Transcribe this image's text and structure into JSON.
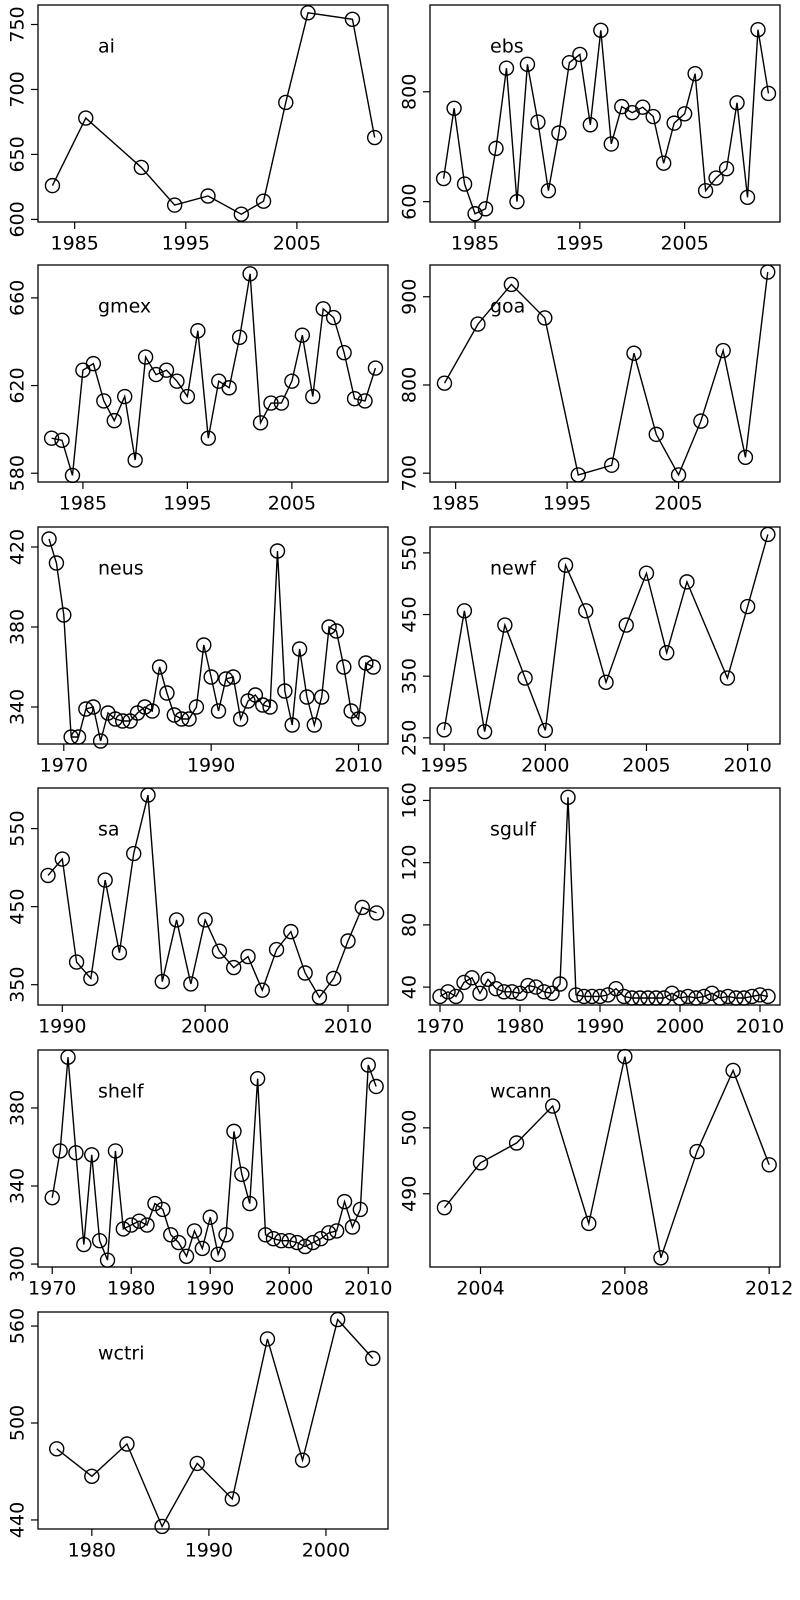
{
  "chart_data": [
    {
      "type": "line",
      "title": "ai",
      "color": "#000000",
      "marker": "circle",
      "x": [
        1983,
        1986,
        1991,
        1994,
        1997,
        2000,
        2002,
        2004,
        2006,
        2010,
        2012
      ],
      "values": [
        626,
        678,
        640,
        611,
        618,
        604,
        614,
        690,
        759,
        754,
        663
      ],
      "xlim": [
        1981.7,
        2013.2
      ],
      "ylim": [
        598,
        765
      ],
      "xticks": [
        1985,
        1995,
        2005
      ],
      "yticks": [
        600,
        650,
        700,
        750
      ]
    },
    {
      "type": "line",
      "title": "ebs",
      "color": "#000000",
      "marker": "circle",
      "x": [
        1982,
        1983,
        1984,
        1985,
        1986,
        1987,
        1988,
        1989,
        1990,
        1991,
        1992,
        1993,
        1994,
        1995,
        1996,
        1997,
        1998,
        1999,
        2000,
        2001,
        2002,
        2003,
        2004,
        2005,
        2006,
        2007,
        2008,
        2009,
        2010,
        2011,
        2012,
        2013
      ],
      "values": [
        642,
        770,
        632,
        578,
        587,
        697,
        843,
        600,
        850,
        745,
        620,
        725,
        853,
        868,
        740,
        912,
        705,
        773,
        762,
        772,
        755,
        670,
        743,
        760,
        833,
        620,
        643,
        660,
        780,
        608,
        913,
        797
      ],
      "xlim": [
        1980.7,
        2014.1
      ],
      "ylim": [
        563,
        958
      ],
      "xticks": [
        1985,
        1995,
        2005
      ],
      "yticks": [
        600,
        800
      ]
    },
    {
      "type": "line",
      "title": "gmex",
      "color": "#000000",
      "marker": "circle",
      "x": [
        1982,
        1983,
        1984,
        1985,
        1986,
        1987,
        1988,
        1989,
        1990,
        1991,
        1992,
        1993,
        1994,
        1995,
        1996,
        1997,
        1998,
        1999,
        2000,
        2001,
        2002,
        2003,
        2004,
        2005,
        2006,
        2007,
        2008,
        2009,
        2010,
        2011,
        2012,
        2013
      ],
      "values": [
        596,
        595,
        579,
        627,
        630,
        613,
        604,
        615,
        586,
        633,
        625,
        627,
        622,
        615,
        645,
        596,
        622,
        619,
        642,
        671,
        603,
        612,
        612,
        622,
        643,
        615,
        655,
        651,
        635,
        614,
        613,
        628
      ],
      "xlim": [
        1980.7,
        2014.2
      ],
      "ylim": [
        576,
        675
      ],
      "xticks": [
        1985,
        1995,
        2005
      ],
      "yticks": [
        580,
        620,
        660
      ]
    },
    {
      "type": "line",
      "title": "goa",
      "color": "#000000",
      "marker": "circle",
      "x": [
        1984,
        1987,
        1990,
        1993,
        1996,
        1999,
        2001,
        2003,
        2005,
        2007,
        2009,
        2011,
        2013
      ],
      "values": [
        802,
        869,
        914,
        876,
        698,
        709,
        836,
        744,
        698,
        759,
        839,
        718,
        928
      ],
      "xlim": [
        1982.7,
        2014.1
      ],
      "ylim": [
        690,
        936
      ],
      "xticks": [
        1985,
        1995,
        2005
      ],
      "yticks": [
        700,
        800,
        900
      ]
    },
    {
      "type": "line",
      "title": "neus",
      "color": "#000000",
      "marker": "circle",
      "x": [
        1968,
        1969,
        1970,
        1971,
        1972,
        1973,
        1974,
        1975,
        1976,
        1977,
        1978,
        1979,
        1980,
        1981,
        1982,
        1983,
        1984,
        1985,
        1986,
        1987,
        1988,
        1989,
        1990,
        1991,
        1992,
        1993,
        1994,
        1995,
        1996,
        1997,
        1998,
        1999,
        2000,
        2001,
        2002,
        2003,
        2004,
        2005,
        2006,
        2007,
        2008,
        2009,
        2010,
        2011,
        2012
      ],
      "values": [
        424,
        412,
        386,
        325,
        325,
        339,
        340,
        323,
        337,
        334,
        333,
        333,
        337,
        340,
        338,
        360,
        347,
        336,
        334,
        334,
        340,
        371,
        355,
        338,
        354,
        355,
        334,
        343,
        346,
        341,
        340,
        418,
        348,
        331,
        369,
        345,
        331,
        345,
        380,
        378,
        360,
        338,
        334,
        362,
        360
      ],
      "xlim": [
        1966.5,
        2014
      ],
      "ylim": [
        321.5,
        430
      ],
      "xticks": [
        1970,
        1990,
        2010
      ],
      "yticks": [
        340,
        380,
        420
      ]
    },
    {
      "type": "line",
      "title": "newf",
      "color": "#000000",
      "marker": "circle",
      "x": [
        1995,
        1996,
        1997,
        1998,
        1999,
        2000,
        2001,
        2002,
        2003,
        2004,
        2005,
        2006,
        2007,
        2009,
        2010,
        2011
      ],
      "values": [
        263,
        456,
        260,
        433,
        347,
        262,
        530,
        456,
        340,
        433,
        517,
        388,
        503,
        347,
        463,
        580
      ],
      "xlim": [
        1994.3,
        2011.6
      ],
      "ylim": [
        240,
        592
      ],
      "xticks": [
        1995,
        2000,
        2005,
        2010
      ],
      "yticks": [
        250,
        350,
        450,
        550
      ]
    },
    {
      "type": "line",
      "title": "sa",
      "color": "#000000",
      "marker": "circle",
      "x": [
        1989,
        1990,
        1991,
        1992,
        1993,
        1994,
        1995,
        1996,
        1997,
        1998,
        1999,
        2000,
        2001,
        2002,
        2003,
        2004,
        2005,
        2006,
        2007,
        2008,
        2009,
        2010,
        2011,
        2012
      ],
      "values": [
        490,
        511,
        379,
        358,
        484,
        391,
        518,
        593,
        354,
        433,
        351,
        433,
        393,
        372,
        386,
        343,
        395,
        418,
        365,
        334,
        358,
        406,
        449,
        442
      ],
      "xlim": [
        1988.3,
        2012.8
      ],
      "ylim": [
        324,
        602
      ],
      "xticks": [
        1990,
        2000,
        2010
      ],
      "yticks": [
        350,
        450,
        550
      ]
    },
    {
      "type": "line",
      "title": "sgulf",
      "color": "#000000",
      "marker": "circle",
      "x": [
        1970,
        1971,
        1972,
        1973,
        1974,
        1975,
        1976,
        1977,
        1978,
        1979,
        1980,
        1981,
        1982,
        1983,
        1984,
        1985,
        1986,
        1987,
        1988,
        1989,
        1990,
        1991,
        1992,
        1993,
        1994,
        1995,
        1996,
        1997,
        1998,
        1999,
        2000,
        2001,
        2002,
        2003,
        2004,
        2005,
        2006,
        2007,
        2008,
        2009,
        2010,
        2011
      ],
      "values": [
        34,
        37,
        34,
        43,
        46,
        36,
        45,
        39,
        37,
        37,
        36,
        41,
        40,
        37,
        36,
        42,
        162,
        35,
        34,
        34,
        34,
        35,
        39,
        34,
        33,
        33,
        33,
        33,
        33,
        36,
        33,
        34,
        33,
        34,
        36,
        33,
        34,
        33,
        33,
        34,
        35,
        34
      ],
      "xlim": [
        1968.75,
        2012.5
      ],
      "ylim": [
        28.5,
        168
      ],
      "xticks": [
        1970,
        1980,
        1990,
        2000,
        2010
      ],
      "yticks": [
        40,
        80,
        120,
        160
      ]
    },
    {
      "type": "line",
      "title": "shelf",
      "color": "#000000",
      "marker": "circle",
      "x": [
        1970,
        1971,
        1972,
        1973,
        1974,
        1975,
        1976,
        1977,
        1978,
        1979,
        1980,
        1981,
        1982,
        1983,
        1984,
        1985,
        1986,
        1987,
        1988,
        1989,
        1990,
        1991,
        1992,
        1993,
        1994,
        1995,
        1996,
        1997,
        1998,
        1999,
        2000,
        2001,
        2002,
        2003,
        2004,
        2005,
        2006,
        2007,
        2008,
        2009,
        2010,
        2011
      ],
      "values": [
        334,
        358,
        406,
        357,
        310,
        356,
        312,
        302,
        358,
        318,
        320,
        322,
        320,
        331,
        328,
        315,
        311,
        304,
        317,
        308,
        324,
        305,
        315,
        368,
        346,
        331,
        395,
        315,
        313,
        312,
        312,
        311,
        309,
        311,
        313,
        316,
        317,
        332,
        319,
        328,
        402,
        391
      ],
      "xlim": [
        1968.2,
        2012.5
      ],
      "ylim": [
        298.5,
        409.7
      ],
      "xticks": [
        1970,
        1980,
        1990,
        2000,
        2010
      ],
      "yticks": [
        300,
        340,
        380
      ]
    },
    {
      "type": "line",
      "title": "wcann",
      "color": "#000000",
      "marker": "circle",
      "x": [
        2003,
        2004,
        2005,
        2006,
        2007,
        2008,
        2009,
        2010,
        2011,
        2012
      ],
      "values": [
        487.9,
        494.7,
        497.7,
        503.3,
        485.5,
        510.8,
        480.3,
        496.4,
        508.7,
        494.4
      ],
      "xlim": [
        2002.6,
        2012.3
      ],
      "ylim": [
        478.9,
        511.8
      ],
      "xticks": [
        2004,
        2008,
        2012
      ],
      "yticks": [
        490,
        500
      ]
    },
    {
      "type": "line",
      "title": "wctri",
      "color": "#000000",
      "marker": "circle",
      "x": [
        1977,
        1980,
        1983,
        1986,
        1989,
        1992,
        1995,
        1998,
        2001,
        2004
      ],
      "values": [
        484,
        467,
        487,
        436,
        475,
        453,
        552,
        477,
        564,
        540
      ],
      "xlim": [
        1975.4,
        2005.3
      ],
      "ylim": [
        434.4,
        568.7
      ],
      "xticks": [
        1980,
        1990,
        2000
      ],
      "yticks": [
        440,
        500,
        560
      ]
    }
  ]
}
